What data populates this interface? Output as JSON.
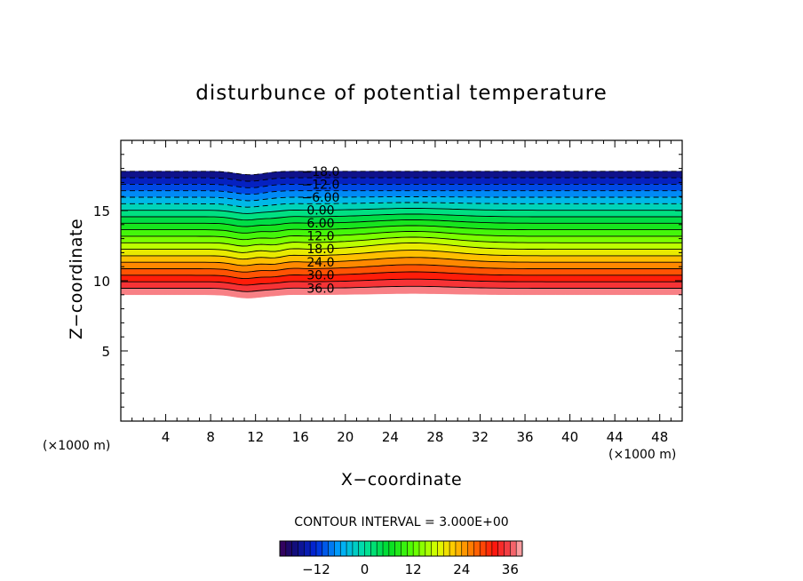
{
  "chart_data": {
    "type": "contour",
    "title": "disturbunce of potential temperature",
    "xlabel": "X−coordinate",
    "ylabel": "Z−coordinate",
    "x_unit_label": "(×1000 m)",
    "y_unit_label": "(×1000 m)",
    "xlim": [
      0,
      50
    ],
    "ylim": [
      0,
      20
    ],
    "x_ticks": [
      4,
      8,
      12,
      16,
      20,
      24,
      28,
      32,
      36,
      40,
      44,
      48
    ],
    "x_tick_labels": [
      "4",
      "8",
      "12",
      "16",
      "20",
      "24",
      "28",
      "32",
      "36",
      "40",
      "44",
      "48"
    ],
    "y_ticks": [
      5,
      10,
      15
    ],
    "y_tick_labels": [
      "5",
      "10",
      "15"
    ],
    "contour_interval_text": "CONTOUR INTERVAL = 3.000E+00",
    "contour_interval": 3,
    "field_range": [
      -18,
      39
    ],
    "shaded_layer": {
      "z_bottom_km": 9.0,
      "z_top_km": 17.8
    },
    "contour_labels": [
      "−18.0",
      "−12.0",
      "−6.00",
      "0.00",
      "6.00",
      "12.0",
      "18.0",
      "24.0",
      "30.0",
      "36.0"
    ],
    "colorbar": {
      "min": -21,
      "max": 39,
      "tick_values": [
        -12,
        0,
        12,
        24,
        36
      ],
      "tick_labels": [
        "−12",
        "0",
        "12",
        "24",
        "36"
      ]
    },
    "colors": {
      "negative_low": "#1a0a6e",
      "zero": "#00e0a0",
      "mid": "#a8ff00",
      "warm": "#ff8000",
      "hot": "#ff1010",
      "top": "#ffb0b0"
    }
  }
}
